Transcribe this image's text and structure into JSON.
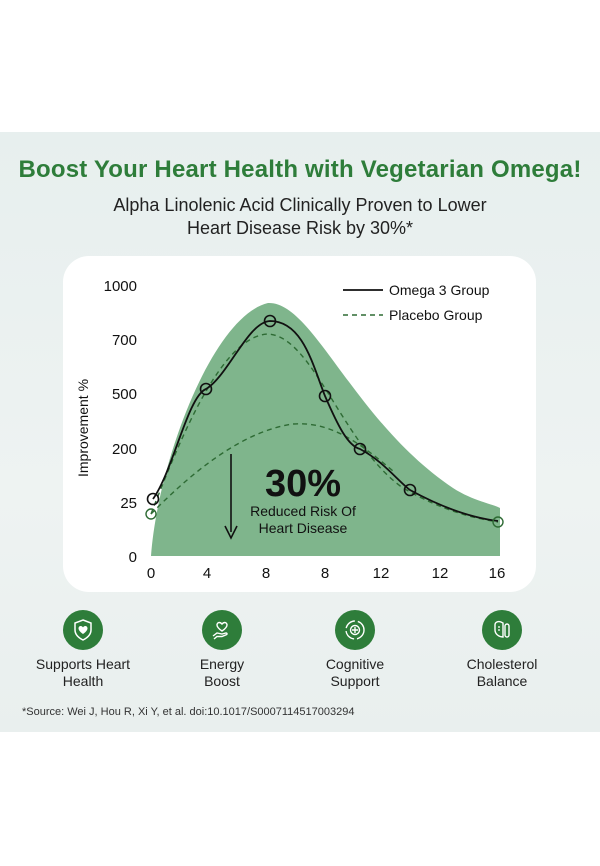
{
  "header": {
    "title": "Boost Your Heart Health with Vegetarian Omega!",
    "subtitle_line1": "Alpha Linolenic Acid Clinically Proven to Lower",
    "subtitle_line2": "Heart Disease Risk by 30%*"
  },
  "chart_data": {
    "type": "line",
    "ylabel": "Improvement %",
    "x_tick_labels": [
      "0",
      "4",
      "8",
      "8",
      "12",
      "12",
      "16"
    ],
    "y_tick_labels": [
      "0",
      "25",
      "200",
      "500",
      "700",
      "1000"
    ],
    "legend": {
      "placement": "top-right",
      "entries": [
        "Omega 3 Group",
        "Placebo Group"
      ]
    },
    "series": [
      {
        "name": "Omega 3 Group",
        "style": "solid",
        "color": "#111111",
        "points": [
          [
            0,
            25
          ],
          [
            4,
            500
          ],
          [
            8,
            700
          ],
          [
            8,
            500
          ],
          [
            12,
            200
          ],
          [
            12,
            25
          ],
          [
            16,
            25
          ]
        ]
      },
      {
        "name": "Placebo Group",
        "style": "dashed",
        "color": "#2e6b34",
        "points": [
          [
            0,
            25
          ],
          [
            8,
            700
          ],
          [
            12,
            200
          ],
          [
            16,
            25
          ]
        ]
      }
    ],
    "annotation": {
      "value": "30%",
      "line1": "Reduced Risk Of",
      "line2": "Heart Disease"
    },
    "fill_color": "#7fb58c",
    "grid": false
  },
  "features": [
    {
      "icon": "heart-shield-icon",
      "label": "Supports Heart\nHealth"
    },
    {
      "icon": "hand-heart-icon",
      "label": "Energy\nBoost"
    },
    {
      "icon": "brain-cycle-icon",
      "label": "Cognitive\nSupport"
    },
    {
      "icon": "liver-pill-icon",
      "label": "Cholesterol\nBalance"
    }
  ],
  "source": "*Source: Wei J, Hou R, Xi Y, et al. doi:10.1017/S0007114517003294",
  "colors": {
    "brand_green": "#2e7d3a",
    "fill_green": "#7fb58c",
    "panel": "#e9efee"
  }
}
